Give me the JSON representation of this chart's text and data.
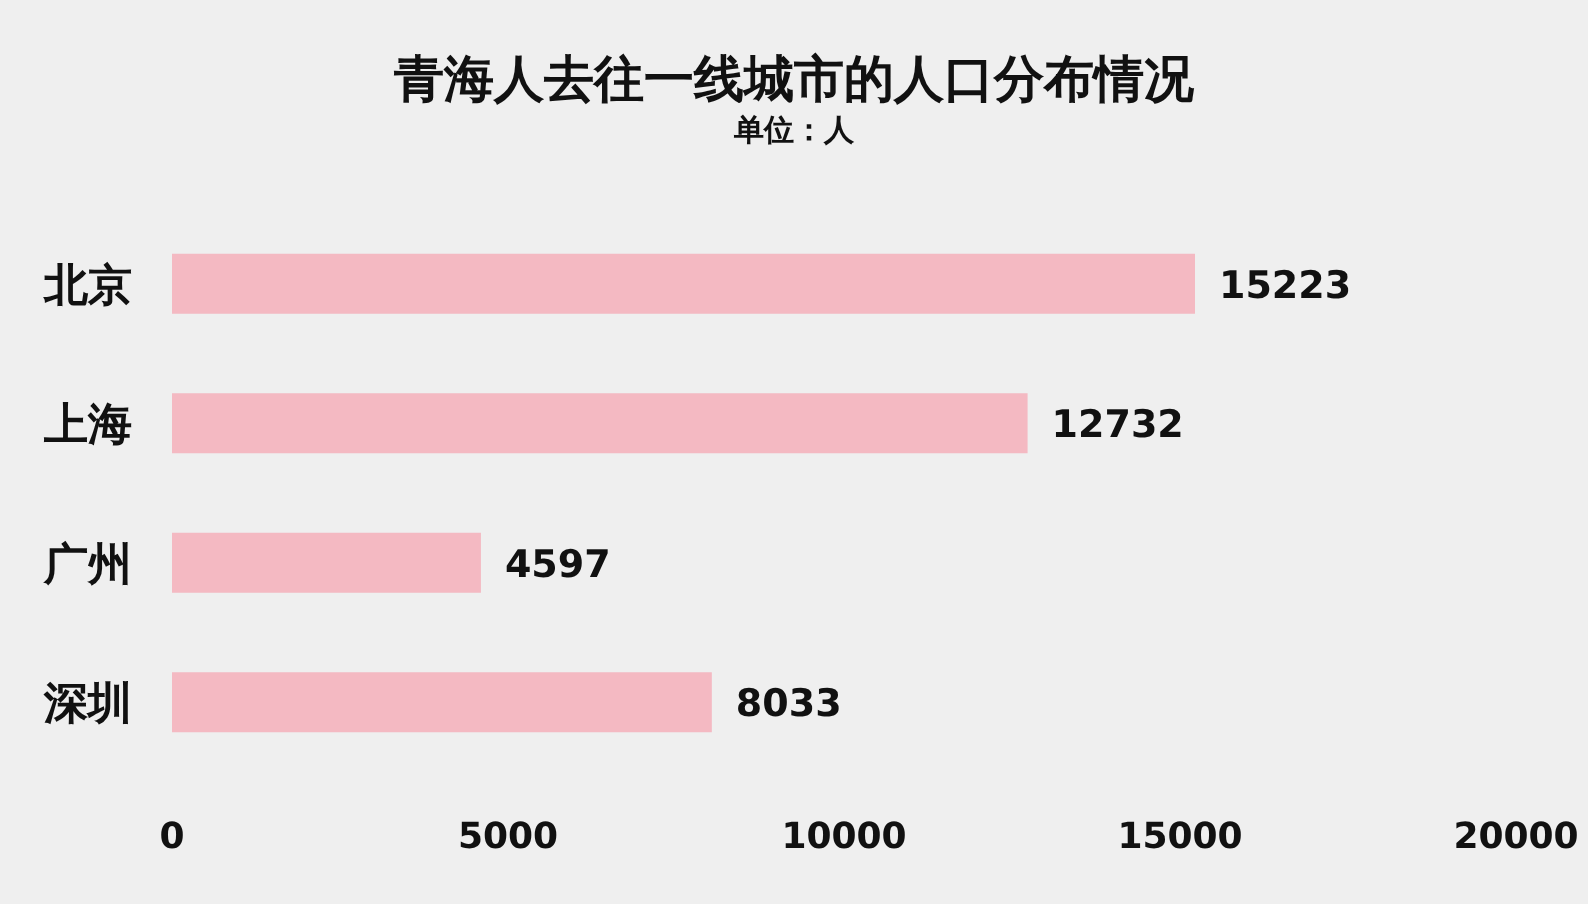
{
  "chart_data": {
    "type": "bar",
    "orientation": "horizontal",
    "title": "青海人去往一线城市的人口分布情况",
    "subtitle": "单位：人",
    "categories": [
      "北京",
      "上海",
      "广州",
      "深圳"
    ],
    "values": [
      15223,
      12732,
      4597,
      8033
    ],
    "color": "#f4b9c2",
    "xlim": [
      0,
      20000
    ],
    "xticks": [
      0,
      5000,
      10000,
      15000,
      20000
    ],
    "data_labels": true,
    "grid": false
  }
}
